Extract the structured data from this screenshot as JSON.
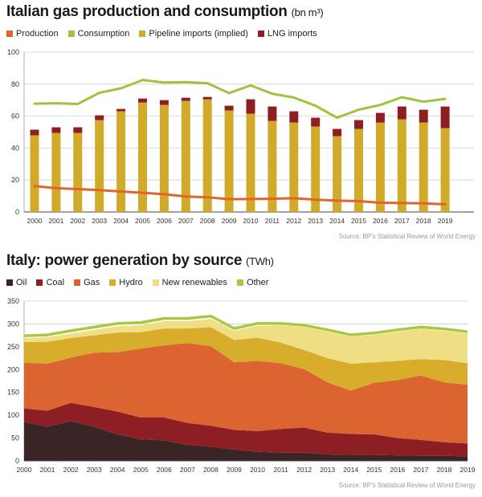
{
  "chart_data": [
    {
      "type": "bar",
      "title": "Italian gas production and consumption",
      "unit": "(bn m³)",
      "source": "Source: BP's Statistical Review of World Energy",
      "categories": [
        "2000",
        "2001",
        "2002",
        "2003",
        "2004",
        "2005",
        "2006",
        "2007",
        "2008",
        "2009",
        "2010",
        "2011",
        "2012",
        "2013",
        "2014",
        "2015",
        "2016",
        "2017",
        "2018",
        "2019"
      ],
      "ylim": [
        0,
        100
      ],
      "yticks": [
        0,
        20,
        40,
        60,
        80,
        100
      ],
      "grid": true,
      "legend_position": "top-left",
      "series": [
        {
          "name": "Production",
          "kind": "line",
          "color": "#e0642c",
          "values": [
            16.2,
            14.9,
            14.3,
            13.7,
            12.8,
            12.0,
            11.1,
            9.7,
            9.2,
            8.0,
            8.1,
            8.3,
            8.6,
            7.7,
            7.1,
            6.8,
            5.8,
            5.6,
            5.4,
            4.8
          ]
        },
        {
          "name": "Consumption",
          "kind": "line",
          "color": "#9ec33c",
          "values": [
            67.8,
            68.0,
            67.6,
            74.6,
            77.4,
            82.6,
            81.0,
            81.3,
            80.6,
            74.4,
            79.2,
            74.0,
            71.6,
            66.5,
            59.0,
            64.0,
            67.0,
            71.8,
            69.0,
            70.8
          ]
        },
        {
          "name": "Pipeline imports (implied)",
          "kind": "bar",
          "color": "#d0aa28",
          "values": [
            48.0,
            49.5,
            49.5,
            57.5,
            63.0,
            68.5,
            67.0,
            69.5,
            70.5,
            63.5,
            61.5,
            57.0,
            56.0,
            53.5,
            47.5,
            52.0,
            56.0,
            58.0,
            56.0,
            52.5
          ]
        },
        {
          "name": "LNG imports",
          "kind": "bar",
          "color": "#8c1e24",
          "values": [
            3.5,
            3.5,
            3.5,
            3.0,
            1.5,
            2.5,
            3.0,
            2.0,
            1.5,
            3.0,
            9.0,
            9.0,
            7.0,
            5.5,
            4.5,
            5.5,
            6.0,
            8.0,
            8.0,
            13.5
          ]
        }
      ]
    },
    {
      "type": "area",
      "title": "Italy: power generation by source",
      "unit": "(TWh)",
      "source": "Source: BP's Statistical Review of World Energy",
      "categories": [
        "2000",
        "2001",
        "2002",
        "2003",
        "2004",
        "2005",
        "2006",
        "2007",
        "2008",
        "2009",
        "2010",
        "2011",
        "2012",
        "2013",
        "2014",
        "2015",
        "2016",
        "2017",
        "2018",
        "2019"
      ],
      "ylim": [
        0,
        350
      ],
      "yticks": [
        0,
        50,
        100,
        150,
        200,
        250,
        300,
        350
      ],
      "grid": true,
      "stacked": true,
      "legend_position": "top-left",
      "series": [
        {
          "name": "Oil",
          "color": "#3a2426",
          "values": [
            85,
            75,
            87,
            75,
            58,
            47,
            45,
            35,
            31,
            25,
            20,
            18,
            18,
            14,
            13,
            13,
            12,
            11,
            11,
            10
          ]
        },
        {
          "name": "Coal",
          "color": "#8c1e24",
          "values": [
            30,
            35,
            40,
            43,
            50,
            48,
            50,
            48,
            46,
            43,
            45,
            52,
            55,
            48,
            46,
            45,
            38,
            35,
            30,
            28
          ]
        },
        {
          "name": "Gas",
          "color": "#db6430",
          "values": [
            100,
            103,
            99,
            119,
            130,
            151,
            158,
            175,
            174,
            148,
            154,
            144,
            128,
            110,
            95,
            113,
            127,
            141,
            131,
            129
          ]
        },
        {
          "name": "Hydro",
          "color": "#d9ad2c",
          "values": [
            45,
            48,
            43,
            38,
            43,
            36,
            37,
            32,
            42,
            49,
            51,
            45,
            42,
            53,
            59,
            45,
            42,
            36,
            49,
            47
          ]
        },
        {
          "name": "New renewables",
          "color": "#f0de84",
          "values": [
            9,
            10,
            10,
            12,
            14,
            15,
            16,
            16,
            18,
            20,
            26,
            38,
            50,
            58,
            59,
            60,
            64,
            66,
            64,
            65
          ]
        },
        {
          "name": "Other",
          "color": "#a8c840",
          "values": [
            5,
            5,
            6,
            6,
            6,
            6,
            6,
            6,
            6,
            5,
            5,
            4,
            4,
            4,
            4,
            4,
            4,
            4,
            4,
            4
          ]
        }
      ]
    }
  ]
}
